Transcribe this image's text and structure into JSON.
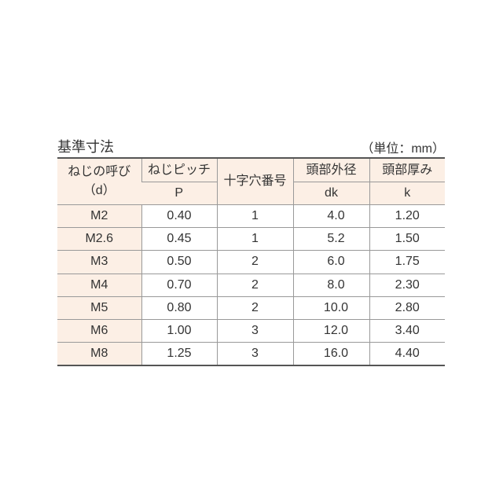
{
  "title": "基準寸法",
  "unit": "（単位：mm）",
  "headers": {
    "d": {
      "name": "ねじの呼び",
      "symbol": "（d）"
    },
    "p": {
      "name": "ねじピッチ",
      "symbol": "P"
    },
    "cross": {
      "name": "十字穴番号"
    },
    "dk": {
      "name": "頭部外径",
      "symbol": "dk"
    },
    "k": {
      "name": "頭部厚み",
      "symbol": "k"
    }
  },
  "rows": [
    [
      "M2",
      "0.40",
      "1",
      "4.0",
      "1.20"
    ],
    [
      "M2.6",
      "0.45",
      "1",
      "5.2",
      "1.50"
    ],
    [
      "M3",
      "0.50",
      "2",
      "6.0",
      "1.75"
    ],
    [
      "M4",
      "0.70",
      "2",
      "8.0",
      "2.30"
    ],
    [
      "M5",
      "0.80",
      "2",
      "10.0",
      "2.80"
    ],
    [
      "M6",
      "1.00",
      "3",
      "12.0",
      "3.40"
    ],
    [
      "M8",
      "1.25",
      "3",
      "16.0",
      "4.40"
    ]
  ],
  "colors": {
    "header_bg": "#fcefe5",
    "text": "#333333"
  }
}
